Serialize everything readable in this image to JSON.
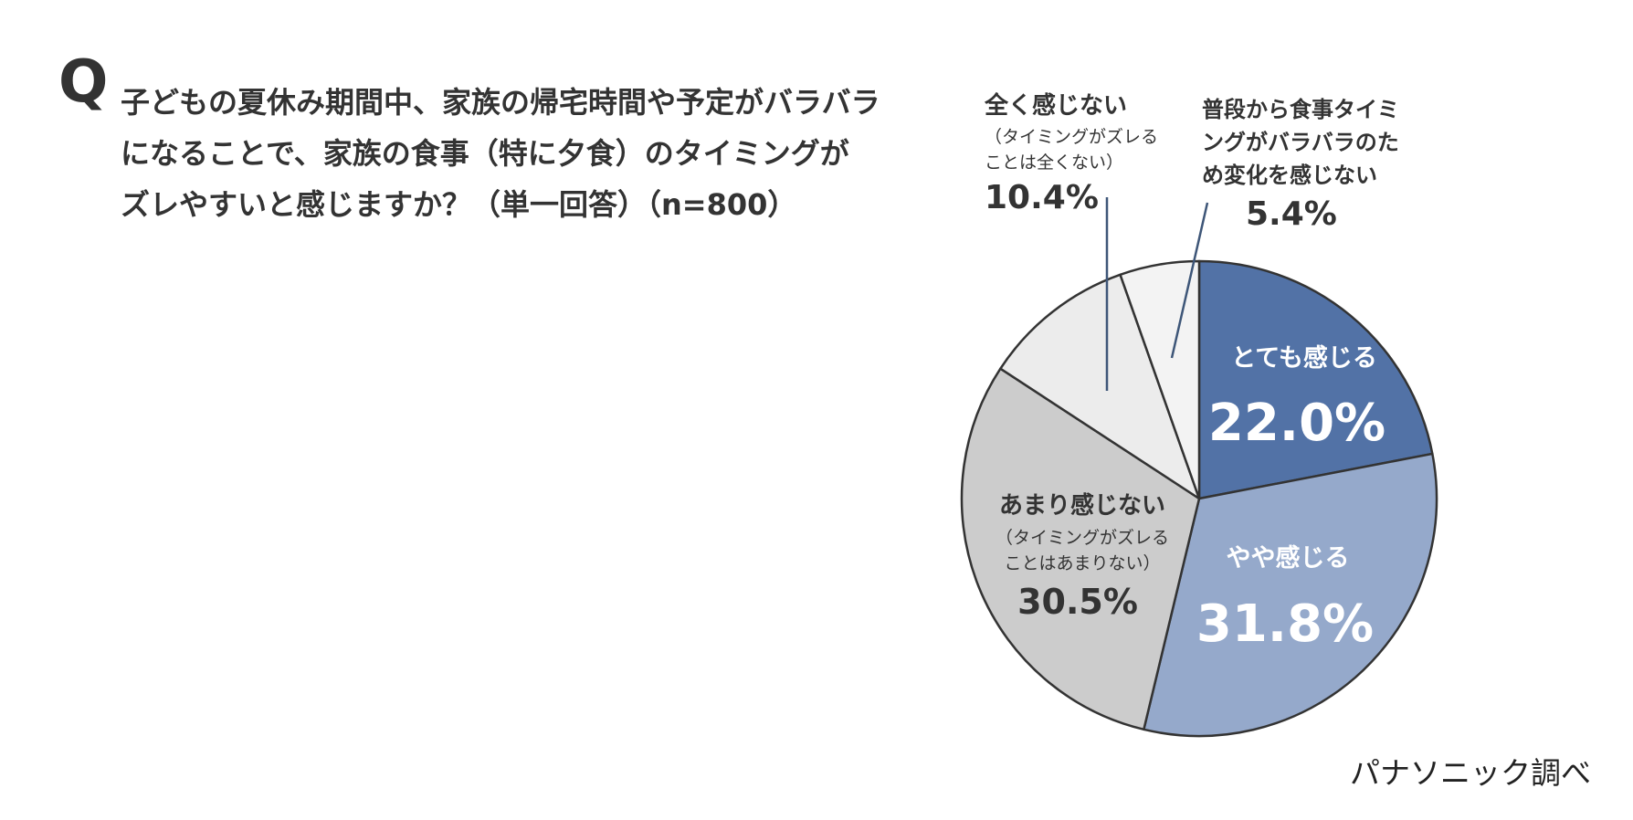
{
  "question": {
    "mark": "Q",
    "lines": [
      "子どもの夏休み期間中、家族の帰宅時間や予定がバラバラ",
      "になることで、家族の食事（特に夕食）のタイミングが",
      "ズレやすいと感じますか？（単一回答）（n=800）"
    ]
  },
  "credit": "パナソニック調べ",
  "colors": {
    "slice_strong": "#5272a6",
    "slice_some": "#95a9cb",
    "slice_notmuch": "#cccccc",
    "slice_none": "#ececec",
    "slice_varies": "#f3f3f3",
    "outline": "#333333",
    "label_light": "#ffffff",
    "label_dark": "#333333"
  },
  "chart_data": {
    "type": "pie",
    "title": "",
    "start_angle_deg": 0,
    "direction": "clockwise",
    "slices": [
      {
        "label": "とても感じる",
        "value": 22.0,
        "value_text": "22.0%"
      },
      {
        "label": "やや感じる",
        "value": 31.8,
        "value_text": "31.8%"
      },
      {
        "label": "あまり感じない",
        "sublabel": [
          "（タイミングがズレる",
          "ことはあまりない）"
        ],
        "value": 30.5,
        "value_text": "30.5%"
      },
      {
        "label": "全く感じない",
        "sublabel": [
          "（タイミングがズレる",
          "ことは全くない）"
        ],
        "value": 10.4,
        "value_text": "10.4%"
      },
      {
        "label": [
          "普段から食事タイミ",
          "ングがバラバラのた",
          "め変化を感じない"
        ],
        "value": 5.4,
        "value_text": "5.4%"
      }
    ]
  }
}
